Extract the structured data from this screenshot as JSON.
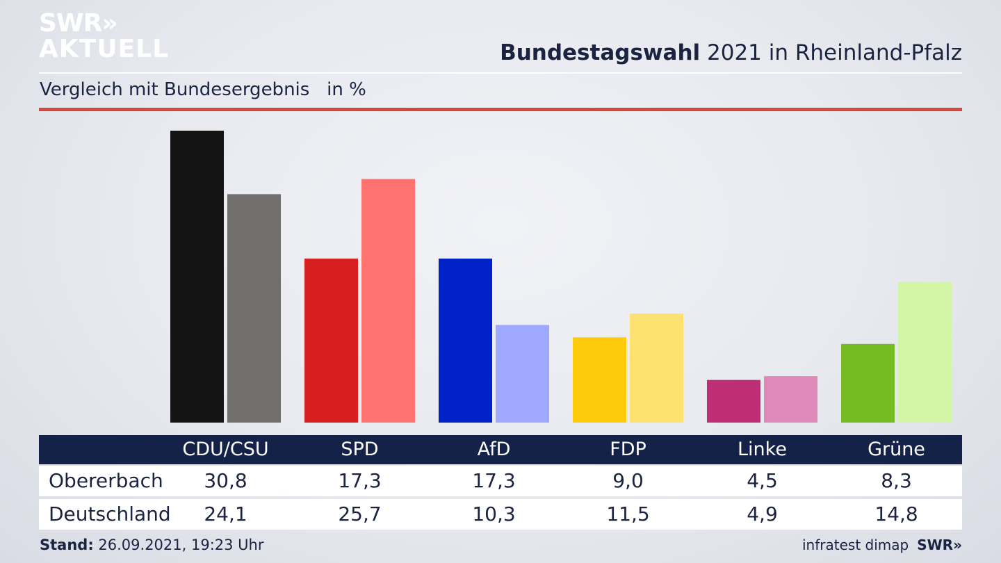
{
  "branding": {
    "logo_line1": "SWR»",
    "logo_line2": "AKTUELL",
    "footer_logo": "SWR»",
    "source": "infratest dimap"
  },
  "header": {
    "title_bold": "Bundestagswahl",
    "title_rest": " 2021 in Rheinland-Pfalz",
    "subtitle": "Vergleich mit Bundesergebnis   in %"
  },
  "footer": {
    "stand_label": "Stand:",
    "stand_value": " 26.09.2021, 19:23 Uhr"
  },
  "chart_data": {
    "type": "bar",
    "categories": [
      "CDU/CSU",
      "SPD",
      "AfD",
      "FDP",
      "Linke",
      "Grüne"
    ],
    "series": [
      {
        "name": "Obererbach",
        "values": [
          30.8,
          17.3,
          17.3,
          9.0,
          4.5,
          8.3
        ]
      },
      {
        "name": "Deutschland",
        "values": [
          24.1,
          25.7,
          10.3,
          11.5,
          4.9,
          14.8
        ]
      }
    ],
    "display_values": [
      [
        "30,8",
        "17,3",
        "17,3",
        "9,0",
        "4,5",
        "8,3"
      ],
      [
        "24,1",
        "25,7",
        "10,3",
        "11,5",
        "4,9",
        "14,8"
      ]
    ],
    "colors": [
      [
        "#141414",
        "#d81f1f",
        "#0021c8",
        "#fdcb0b",
        "#bd2e76",
        "#76bb22"
      ],
      [
        "#706f6d",
        "#fe736f",
        "#9ea9ff",
        "#fde171",
        "#df89b8",
        "#d2f5a6"
      ]
    ],
    "ylim": [
      0,
      30.8
    ]
  }
}
